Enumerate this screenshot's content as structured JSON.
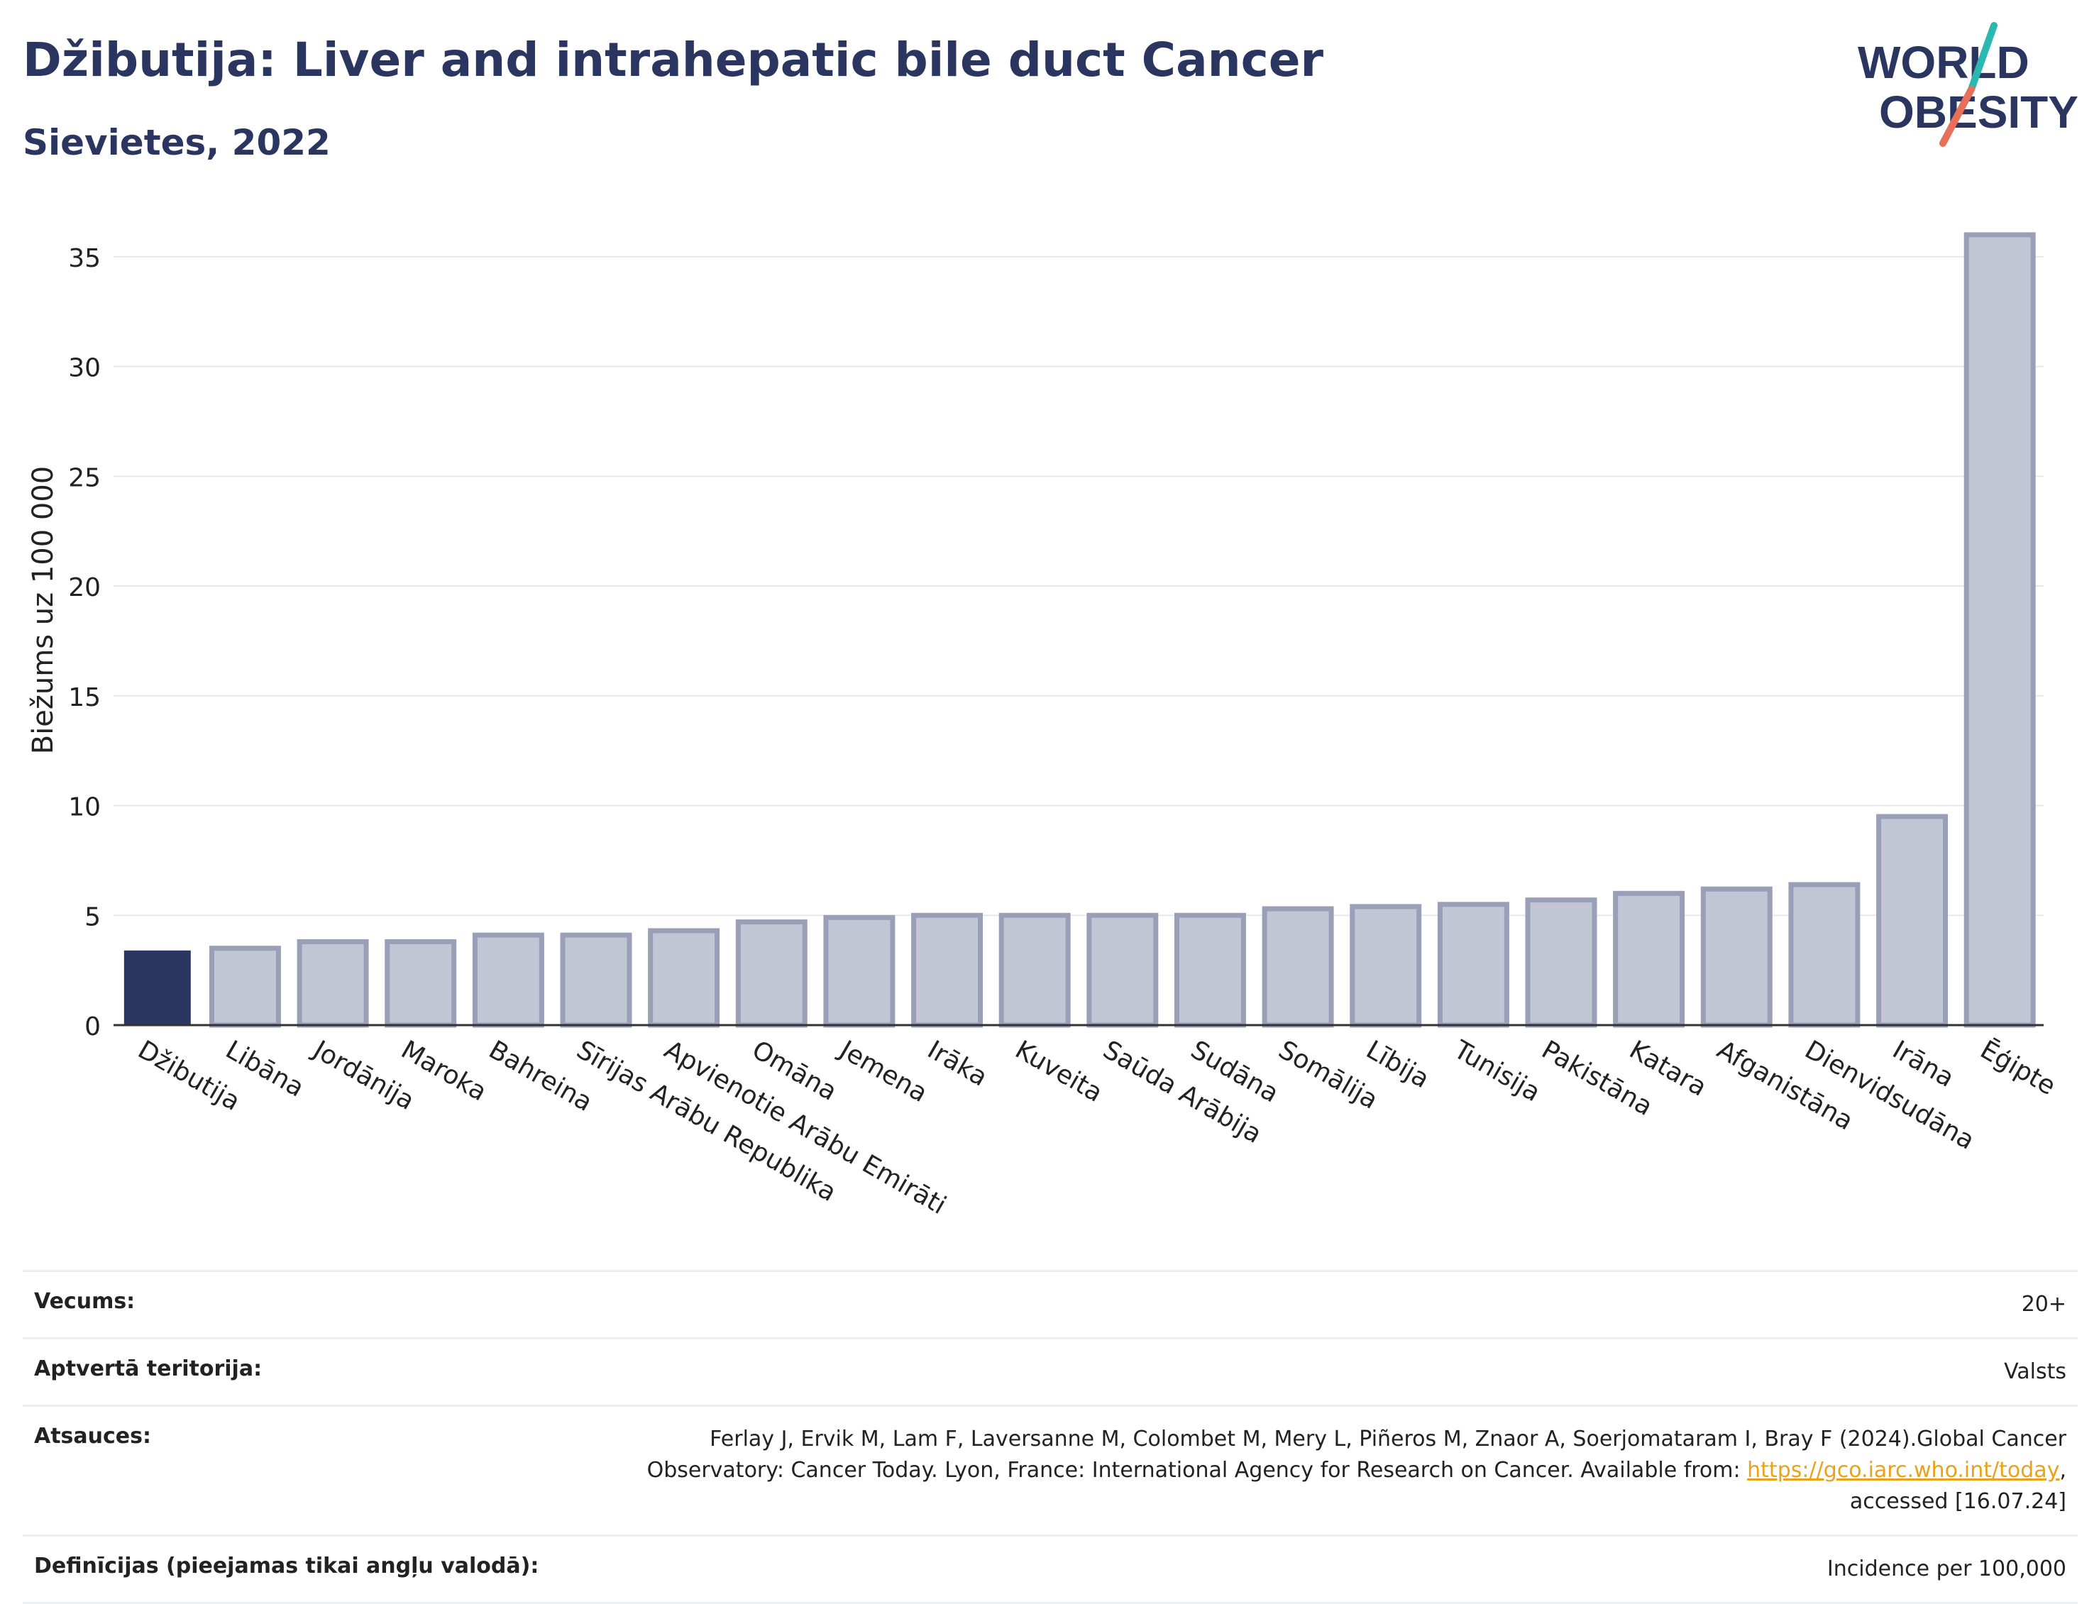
{
  "header": {
    "title": "Džibutija: Liver and intrahepatic bile duct Cancer",
    "subtitle": "Sievietes, 2022"
  },
  "logo": {
    "line1": "WORLD",
    "line2": "OBESITY"
  },
  "colors": {
    "highlight": "#2a3660",
    "bar": "#c2c5d3",
    "bar_stroke": "#9a9fb8",
    "grid": "#e6e8ee",
    "logo_teal": "#2ab8b0",
    "logo_coral": "#e8705a"
  },
  "chart_data": {
    "type": "bar",
    "ylabel": "Biežums uz 100 000",
    "ylim": [
      0,
      37
    ],
    "yticks": [
      0,
      5,
      10,
      15,
      20,
      25,
      30,
      35
    ],
    "grid": true,
    "highlight_index": 0,
    "categories": [
      "Džibutija",
      "Libāna",
      "Jordānija",
      "Maroka",
      "Bahreina",
      "Sīrijas Arābu Republika",
      "Apvienotie Arābu Emirāti",
      "Omāna",
      "Jemena",
      "Irāka",
      "Kuveita",
      "Saūda Arābija",
      "Sudāna",
      "Somālija",
      "Lībija",
      "Tunisija",
      "Pakistāna",
      "Katara",
      "Afganistāna",
      "Dienvidsudāna",
      "Irāna",
      "Ēģipte"
    ],
    "values": [
      3.4,
      3.5,
      3.8,
      3.8,
      4.1,
      4.1,
      4.3,
      4.7,
      4.9,
      5.0,
      5.0,
      5.0,
      5.0,
      5.3,
      5.4,
      5.5,
      5.7,
      6.0,
      6.2,
      6.4,
      9.5,
      36.0
    ]
  },
  "meta": {
    "age_label": "Vecums:",
    "age_value": "20+",
    "territory_label": "Aptvertā teritorija:",
    "territory_value": "Valsts",
    "refs_label": "Atsauces:",
    "refs_line1": "Ferlay J, Ervik M, Lam F, Laversanne M, Colombet M, Mery L, Piñeros M, Znaor A, Soerjomataram I, Bray F (2024).Global Cancer",
    "refs_line2": "Observatory: Cancer Today. Lyon, France: International Agency for Research on Cancer. Available from: ",
    "refs_link": "https://gco.iarc.who.int/today",
    "refs_line2_end": ",",
    "refs_line3": "accessed [16.07.24]",
    "defs_label": "Definīcijas (pieejamas tikai angļu valodā):",
    "defs_value": "Incidence per 100,000"
  }
}
